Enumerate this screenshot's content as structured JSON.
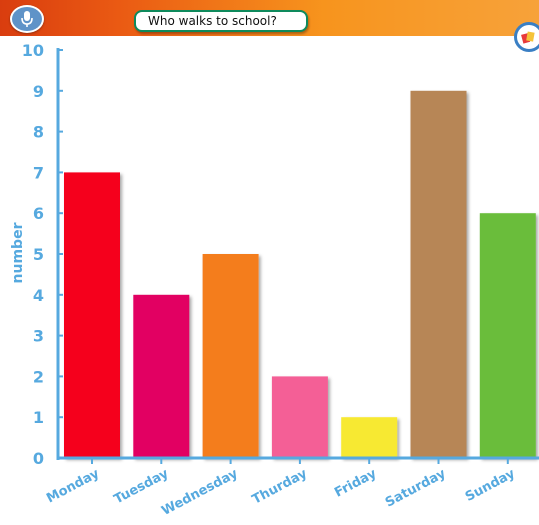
{
  "header": {
    "title": "Who walks to school?"
  },
  "icons": {
    "microphone": "microphone-icon",
    "chart_tool": "chart-tool-icon"
  },
  "chart_data": {
    "type": "bar",
    "title": "Who walks to school?",
    "xlabel": "",
    "ylabel": "number",
    "ylim": [
      0,
      10
    ],
    "yticks": [
      0,
      1,
      2,
      3,
      4,
      5,
      6,
      7,
      8,
      9,
      10
    ],
    "grid": false,
    "categories": [
      "Monday",
      "Tuesday",
      "Wednesday",
      "Thurday",
      "Friday",
      "Saturday",
      "Sunday"
    ],
    "values": [
      7,
      4,
      5,
      2,
      1,
      9,
      6
    ],
    "colors": [
      "#f5001e",
      "#e20062",
      "#f47d1e",
      "#f45f96",
      "#f7e932",
      "#b78656",
      "#6abd3a"
    ],
    "axis_color": "#56a9df"
  }
}
